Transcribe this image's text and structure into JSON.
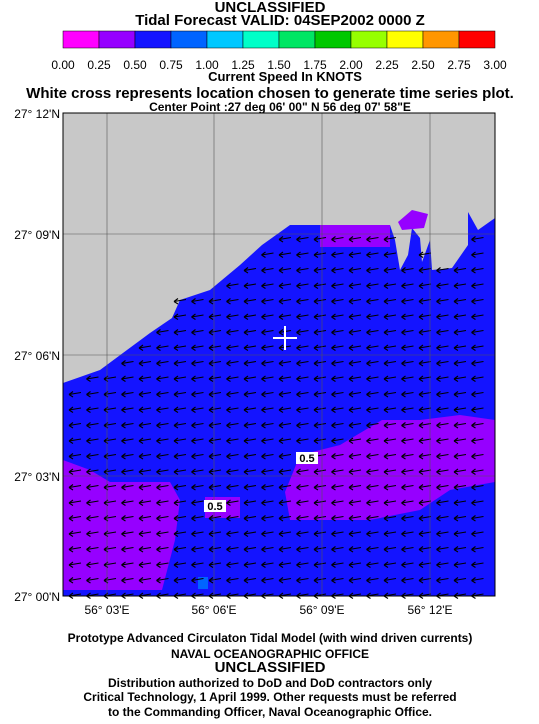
{
  "header": {
    "classification": "UNCLASSIFIED",
    "title": "Tidal Forecast VALID: 04SEP2002 0000 Z"
  },
  "colorbar": {
    "label": "Current Speed In KNOTS",
    "ticks": [
      {
        "value": 0,
        "label": "0.00"
      },
      {
        "value": 0.25,
        "label": "0.25"
      },
      {
        "value": 0.5,
        "label": "0.50"
      },
      {
        "value": 0.75,
        "label": "0.75"
      },
      {
        "value": 1,
        "label": "1.00"
      },
      {
        "value": 1.25,
        "label": "1.25"
      },
      {
        "value": 1.5,
        "label": "1.50"
      },
      {
        "value": 1.75,
        "label": "1.75"
      },
      {
        "value": 2,
        "label": "2.00"
      },
      {
        "value": 2.25,
        "label": "2.25"
      },
      {
        "value": 2.5,
        "label": "2.50"
      },
      {
        "value": 2.75,
        "label": "2.75"
      },
      {
        "value": 3,
        "label": "3.00"
      }
    ],
    "colors": [
      "#ff00ff",
      "#9600ff",
      "#1414ff",
      "#0064ff",
      "#00c8ff",
      "#00ffc8",
      "#00e664",
      "#00c800",
      "#96ff00",
      "#ffff00",
      "#ff9600",
      "#ff0000"
    ]
  },
  "notes": [
    "White cross represents location chosen to generate time series plot.",
    "Center Point :27 deg 06' 00\" N 56 deg 07' 58\"E"
  ],
  "map": {
    "lat_ticks": [
      "27° 12'N",
      "27° 09'N",
      "27° 06'N",
      "27° 03'N",
      "27° 00'N"
    ],
    "lon_ticks": [
      "56° 03'E",
      "56° 06'E",
      "56° 09'E",
      "56° 12'E"
    ],
    "contour_labels": [
      "0.5",
      "0.5"
    ]
  },
  "footer": [
    "Prototype Advanced Circulaton Tidal Model (with wind driven currents)",
    "NAVAL OCEANOGRAPHIC OFFICE",
    "UNCLASSIFIED",
    "Distribution authorized to DoD and DoD contractors only",
    "Critical Technology, 1 April 1999. Other requests must be referred",
    "to the Commanding Officer, Naval Oceanographic Office."
  ]
}
